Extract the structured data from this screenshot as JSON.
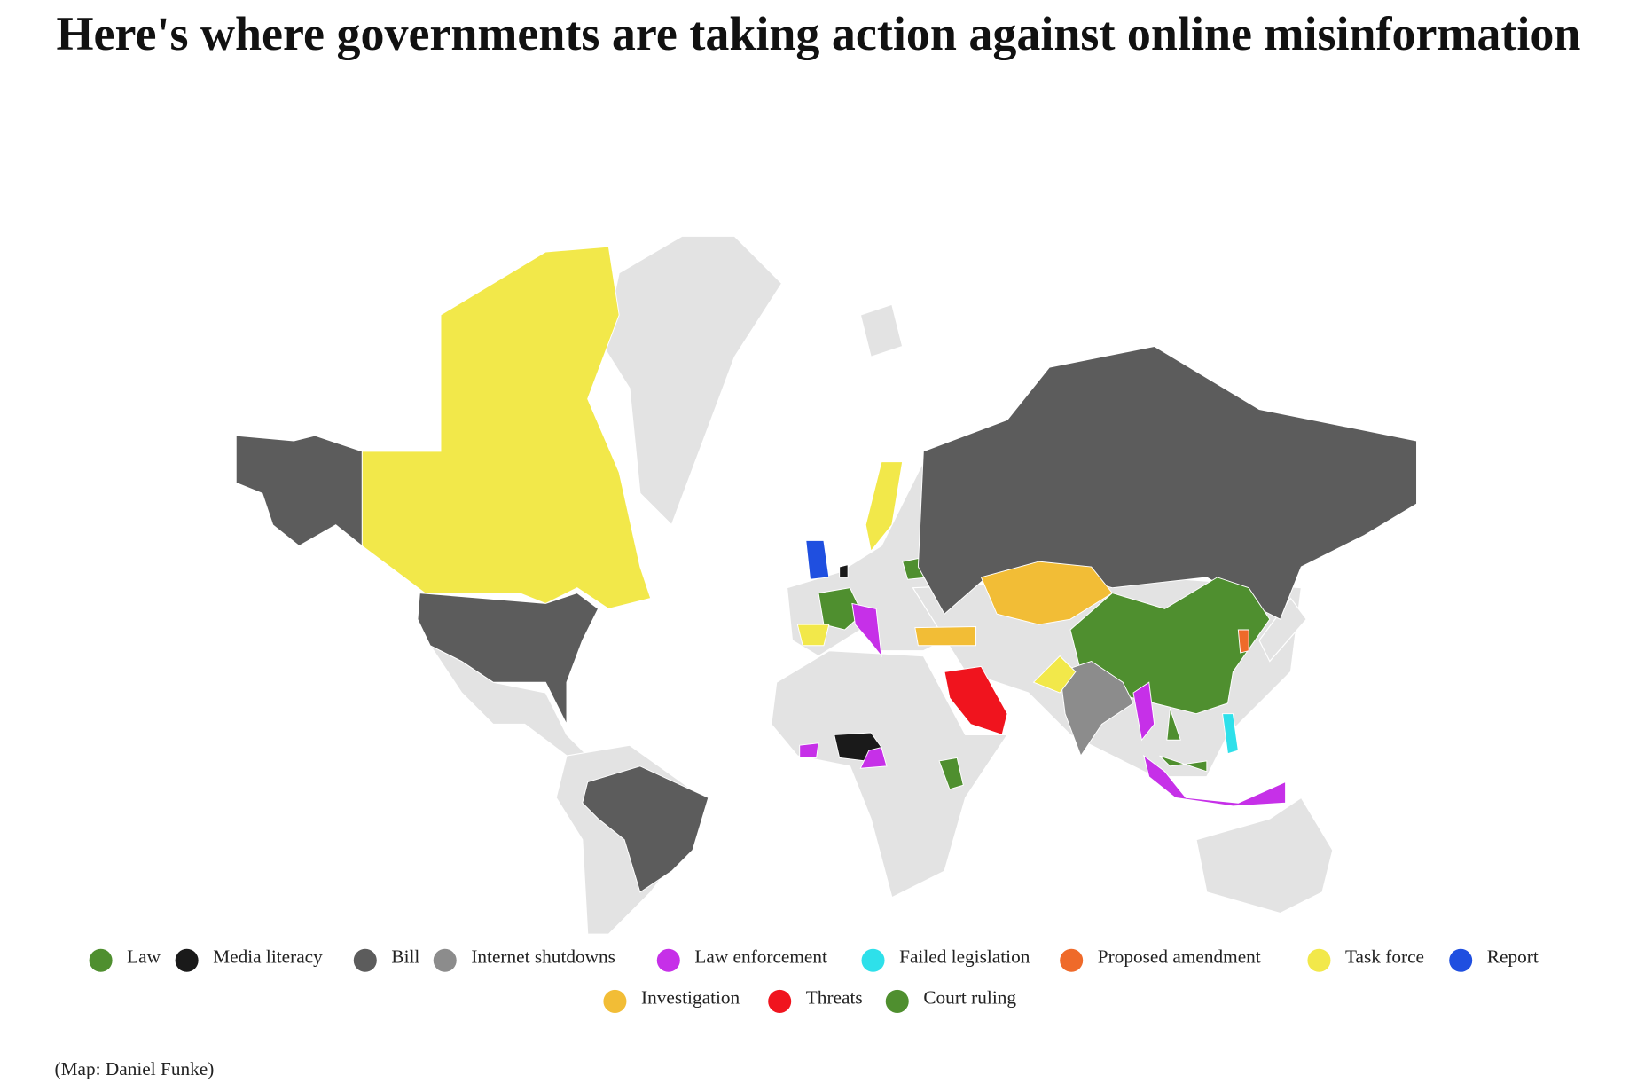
{
  "title": "Here's where governments are taking action against online misinformation",
  "legend": [
    {
      "label": "Law",
      "color": "#4f8f2f"
    },
    {
      "label": "Media literacy",
      "color": "#1a1a1a"
    },
    {
      "label": "Bill",
      "color": "#5c5c5c"
    },
    {
      "label": "Internet shutdowns",
      "color": "#8c8c8c"
    },
    {
      "label": "Law enforcement",
      "color": "#c630e8"
    },
    {
      "label": "Failed legislation",
      "color": "#2ee0ea"
    },
    {
      "label": "Proposed amendment",
      "color": "#ef6a2a"
    },
    {
      "label": "Task force",
      "color": "#f2e84a"
    },
    {
      "label": "Report",
      "color": "#1f4fe0"
    },
    {
      "label": "Investigation",
      "color": "#f2bd36"
    },
    {
      "label": "Threats",
      "color": "#f0141e"
    },
    {
      "label": "Court ruling",
      "color": "#4f8f2f"
    }
  ],
  "credit": "(Map: Daniel Funke)"
}
